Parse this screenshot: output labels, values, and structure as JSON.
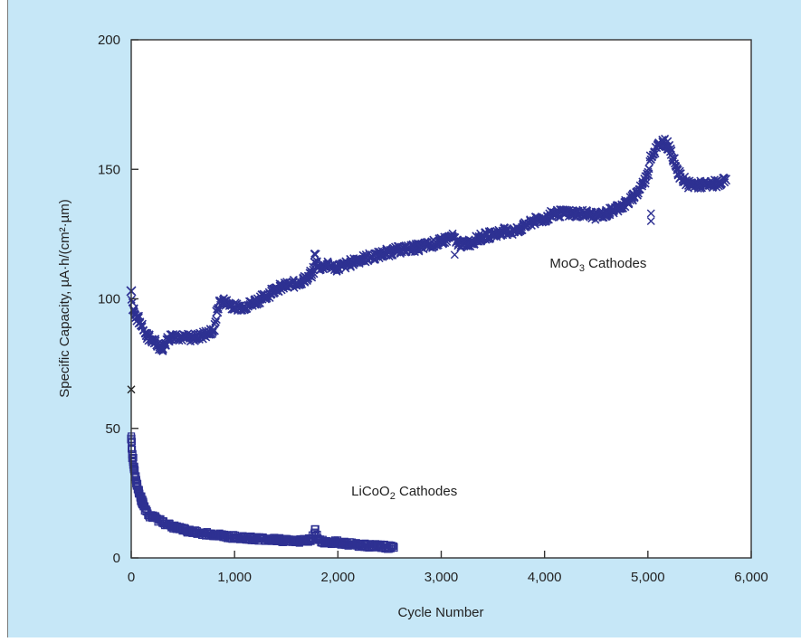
{
  "chart_data": {
    "type": "scatter",
    "title": "",
    "xlabel": "Cycle Number",
    "ylabel": "Specific Capacity, µA·h/(cm²·µm)",
    "xlim": [
      0,
      6000
    ],
    "ylim": [
      0,
      200
    ],
    "xticks": [
      {
        "value": 0,
        "label": "0"
      },
      {
        "value": 1000,
        "label": "1,000"
      },
      {
        "value": 2000,
        "label": "2,000"
      },
      {
        "value": 3000,
        "label": "3,000"
      },
      {
        "value": 4000,
        "label": "4,000"
      },
      {
        "value": 5000,
        "label": "5,000"
      },
      {
        "value": 6000,
        "label": "6,000"
      }
    ],
    "yticks": [
      {
        "value": 0,
        "label": "0"
      },
      {
        "value": 50,
        "label": "50"
      },
      {
        "value": 100,
        "label": "100"
      },
      {
        "value": 150,
        "label": "150"
      },
      {
        "value": 200,
        "label": "200"
      }
    ],
    "grid": false,
    "legend": "none",
    "colors": {
      "background": "#c6e7f7",
      "plot_area": "#ffffff",
      "series": "#2e3192",
      "frame": "#333333"
    },
    "annotations": [
      {
        "text_main": "MoO",
        "text_sub": "3",
        "text_rest": " Cathodes",
        "x": 4050,
        "y": 112
      },
      {
        "text_main": "LiCoO",
        "text_sub": "2",
        "text_rest": " Cathodes",
        "x": 2130,
        "y": 24
      }
    ],
    "series": [
      {
        "marker": "x",
        "x": [
          0,
          20,
          50,
          100,
          150,
          200,
          300,
          350,
          400,
          500,
          600,
          700,
          800,
          830,
          860,
          900,
          1000,
          1100,
          1200,
          1300,
          1400,
          1500,
          1600,
          1700,
          1760,
          1780,
          1800,
          1900,
          2000,
          2200,
          2400,
          2600,
          2800,
          3000,
          3100,
          3150,
          3200,
          3300,
          3400,
          3500,
          3600,
          3700,
          3800,
          3900,
          4000,
          4100,
          4200,
          4300,
          4400,
          4500,
          4600,
          4700,
          4800,
          4900,
          5000,
          5030,
          5100,
          5150,
          5200,
          5250,
          5300,
          5400,
          5500,
          5600,
          5700,
          5750
        ],
        "y": [
          103,
          96,
          93,
          90,
          86,
          84,
          81,
          84,
          86,
          85,
          85,
          86,
          88,
          95,
          99,
          99,
          97,
          97,
          99,
          101,
          104,
          105,
          106,
          108,
          110,
          117,
          112,
          113,
          112,
          115,
          117,
          119,
          120,
          122,
          124,
          122,
          121,
          122,
          124,
          125,
          126,
          126,
          128,
          130,
          131,
          133,
          133,
          133,
          133,
          132,
          133,
          135,
          137,
          141,
          148,
          155,
          159,
          161,
          159,
          154,
          148,
          144,
          144,
          144,
          145,
          146
        ]
      },
      {
        "marker": "square",
        "x": [
          0,
          10,
          25,
          50,
          75,
          100,
          150,
          200,
          300,
          400,
          500,
          600,
          800,
          1000,
          1200,
          1400,
          1600,
          1750,
          1780,
          1800,
          1900,
          2000,
          2200,
          2400,
          2540
        ],
        "y": [
          46,
          40,
          35,
          29,
          25,
          22,
          18,
          16,
          14,
          12,
          11,
          10,
          9,
          8,
          7.5,
          7,
          6.5,
          7,
          11,
          7,
          6,
          6,
          5,
          4.5,
          4
        ]
      }
    ],
    "outliers": [
      {
        "x": 0,
        "y": 65,
        "marker": "x"
      },
      {
        "x": 3130,
        "y": 117,
        "marker": "x"
      },
      {
        "x": 5030,
        "y": 133,
        "marker": "x"
      },
      {
        "x": 5030,
        "y": 130,
        "marker": "x"
      }
    ]
  }
}
